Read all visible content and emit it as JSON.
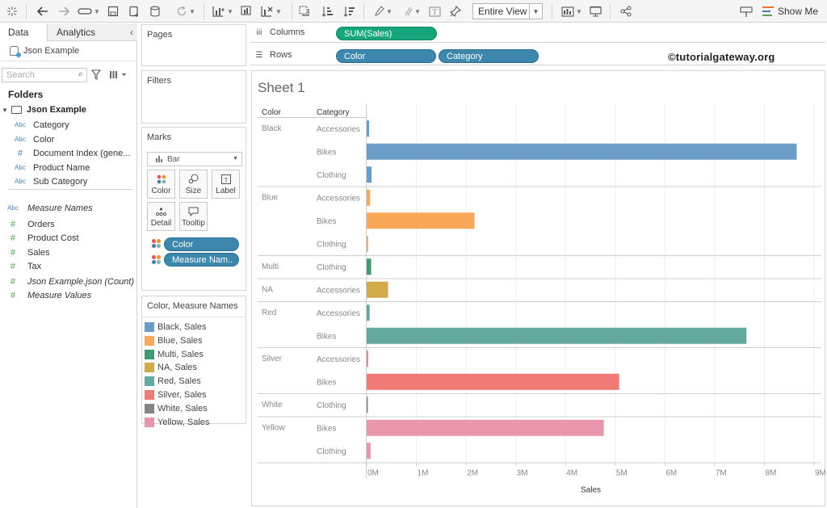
{
  "toolbar": {
    "view_select": "Entire View",
    "show_me": "Show Me"
  },
  "data_pane": {
    "tab_data": "Data",
    "tab_analytics": "Analytics",
    "datasource": "Json Example",
    "search_placeholder": "Search",
    "folders_label": "Folders",
    "ds_folder": "Json Example",
    "dimensions": [
      {
        "type": "Abc",
        "name": "Category"
      },
      {
        "type": "Abc",
        "name": "Color"
      },
      {
        "type": "#",
        "name": "Document Index (gene..."
      },
      {
        "type": "Abc",
        "name": "Product Name"
      },
      {
        "type": "Abc",
        "name": "Sub Category"
      }
    ],
    "measure_names": {
      "type": "Abc",
      "name": "Measure Names"
    },
    "measures": [
      {
        "type": "#",
        "name": "Orders"
      },
      {
        "type": "#",
        "name": "Product Cost"
      },
      {
        "type": "#",
        "name": "Sales"
      },
      {
        "type": "#",
        "name": "Tax"
      },
      {
        "type": "#",
        "name": "Json Example.json (Count)"
      },
      {
        "type": "#",
        "name": "Measure Values"
      }
    ]
  },
  "cards": {
    "pages": "Pages",
    "filters": "Filters",
    "marks": "Marks",
    "mark_type": "Bar",
    "mark_buttons": [
      "Color",
      "Size",
      "Label",
      "Detail",
      "Tooltip"
    ],
    "mark_pills": [
      "Color",
      "Measure Nam.."
    ]
  },
  "legend": {
    "title": "Color, Measure Names",
    "items": [
      {
        "label": "Black, Sales",
        "color": "#6b9dc8"
      },
      {
        "label": "Blue, Sales",
        "color": "#f9a85a"
      },
      {
        "label": "Multi, Sales",
        "color": "#3f9a72"
      },
      {
        "label": "NA, Sales",
        "color": "#d2aa4a"
      },
      {
        "label": "Red, Sales",
        "color": "#64a9a0"
      },
      {
        "label": "Silver, Sales",
        "color": "#ef7a76"
      },
      {
        "label": "White, Sales",
        "color": "#858585"
      },
      {
        "label": "Yellow, Sales",
        "color": "#e996ad"
      }
    ]
  },
  "shelves": {
    "columns_label": "Columns",
    "rows_label": "Rows",
    "columns_pills": [
      "SUM(Sales)"
    ],
    "rows_pills": [
      "Color",
      "Category"
    ]
  },
  "watermark": "©tutorialgateway.org",
  "sheet_title": "Sheet 1",
  "chart_data": {
    "type": "bar",
    "orientation": "horizontal",
    "row_headers": [
      "Color",
      "Category"
    ],
    "xlabel": "Sales",
    "xlim": [
      0,
      9000000
    ],
    "xticks": [
      {
        "value": 0,
        "label": "0M"
      },
      {
        "value": 1000000,
        "label": "1M"
      },
      {
        "value": 2000000,
        "label": "2M"
      },
      {
        "value": 3000000,
        "label": "3M"
      },
      {
        "value": 4000000,
        "label": "4M"
      },
      {
        "value": 5000000,
        "label": "5M"
      },
      {
        "value": 6000000,
        "label": "6M"
      },
      {
        "value": 7000000,
        "label": "7M"
      },
      {
        "value": 8000000,
        "label": "8M"
      },
      {
        "value": 9000000,
        "label": "9M"
      }
    ],
    "groups": [
      {
        "color": "Black",
        "bar_color": "#6b9dc8",
        "rows": [
          {
            "category": "Accessories",
            "value": 50000
          },
          {
            "category": "Bikes",
            "value": 8650000
          },
          {
            "category": "Clothing",
            "value": 100000
          }
        ]
      },
      {
        "color": "Blue",
        "bar_color": "#f9a85a",
        "rows": [
          {
            "category": "Accessories",
            "value": 70000
          },
          {
            "category": "Bikes",
            "value": 2170000
          },
          {
            "category": "Clothing",
            "value": 30000
          }
        ]
      },
      {
        "color": "Multi",
        "bar_color": "#3f9a72",
        "rows": [
          {
            "category": "Clothing",
            "value": 90000
          }
        ]
      },
      {
        "color": "NA",
        "bar_color": "#d2aa4a",
        "rows": [
          {
            "category": "Accessories",
            "value": 430000
          }
        ]
      },
      {
        "color": "Red",
        "bar_color": "#64a9a0",
        "rows": [
          {
            "category": "Accessories",
            "value": 60000
          },
          {
            "category": "Bikes",
            "value": 7640000
          }
        ]
      },
      {
        "color": "Silver",
        "bar_color": "#ef7a76",
        "rows": [
          {
            "category": "Accessories",
            "value": 30000
          },
          {
            "category": "Bikes",
            "value": 5080000
          }
        ]
      },
      {
        "color": "White",
        "bar_color": "#858585",
        "rows": [
          {
            "category": "Clothing",
            "value": 10000
          }
        ]
      },
      {
        "color": "Yellow",
        "bar_color": "#e996ad",
        "rows": [
          {
            "category": "Bikes",
            "value": 4770000
          },
          {
            "category": "Clothing",
            "value": 80000
          }
        ]
      }
    ]
  }
}
